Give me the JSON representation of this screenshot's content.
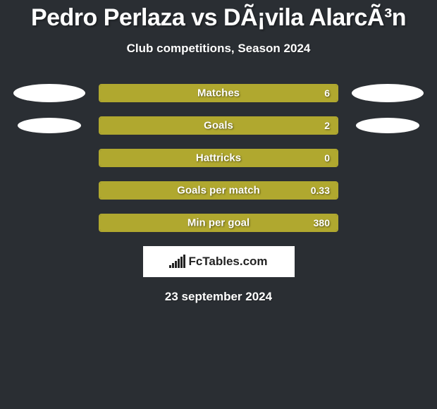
{
  "title": "Pedro Perlaza vs DÃ¡vila AlarcÃ³n",
  "subtitle": "Club competitions, Season 2024",
  "date": "23 september 2024",
  "logo_text": "FcTables.com",
  "colors": {
    "background": "#2a2e33",
    "bar_fill": "#b0a82f",
    "bar_border": "#b0a82f",
    "oval": "#ffffff",
    "text": "#ffffff",
    "logo_bg": "#ffffff",
    "logo_text": "#222222"
  },
  "rows": [
    {
      "label": "Matches",
      "value": "6",
      "fill_pct": 100,
      "oval_left": true,
      "oval_right": true,
      "indent": false
    },
    {
      "label": "Goals",
      "value": "2",
      "fill_pct": 100,
      "oval_left": true,
      "oval_right": true,
      "indent": true
    },
    {
      "label": "Hattricks",
      "value": "0",
      "fill_pct": 100,
      "oval_left": false,
      "oval_right": false,
      "indent": false
    },
    {
      "label": "Goals per match",
      "value": "0.33",
      "fill_pct": 100,
      "oval_left": false,
      "oval_right": false,
      "indent": false
    },
    {
      "label": "Min per goal",
      "value": "380",
      "fill_pct": 100,
      "oval_left": false,
      "oval_right": false,
      "indent": false
    }
  ],
  "logo_bar_heights": [
    4,
    7,
    10,
    13,
    16,
    19
  ]
}
